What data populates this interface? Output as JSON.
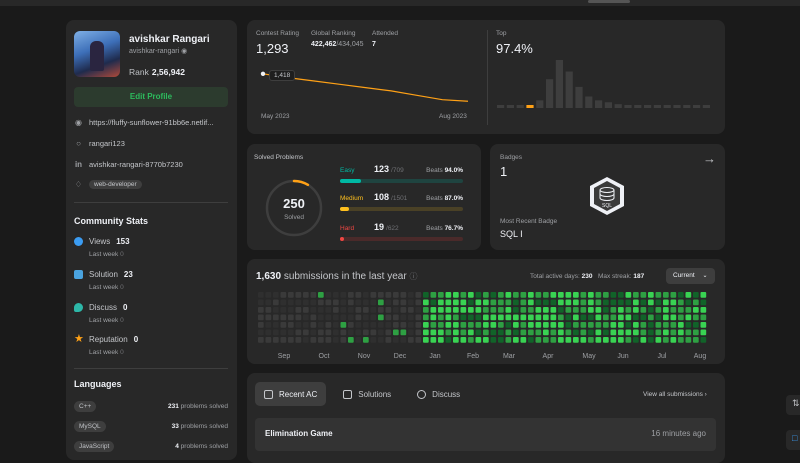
{
  "profile": {
    "name": "avishkar Rangari",
    "handle": "avishkar-rangari",
    "rank_label": "Rank",
    "rank_value": "2,56,942",
    "edit_label": "Edit Profile",
    "website": "https://fluffy-sunflower-91bb6e.netlif...",
    "github": "rangari123",
    "linkedin": "avishkar-rangari-8770b7230",
    "tag": "web-developer"
  },
  "community": {
    "title": "Community Stats",
    "items": [
      {
        "label": "Views",
        "value": "153",
        "sub": "Last week",
        "delta": "0",
        "color": "#3b9cf2"
      },
      {
        "label": "Solution",
        "value": "23",
        "sub": "Last week",
        "delta": "0",
        "color": "#4aa3df"
      },
      {
        "label": "Discuss",
        "value": "0",
        "sub": "Last week",
        "delta": "0",
        "color": "#2db7a8"
      },
      {
        "label": "Reputation",
        "value": "0",
        "sub": "Last week",
        "delta": "0",
        "color": "#ffa116"
      }
    ]
  },
  "languages": {
    "title": "Languages",
    "items": [
      {
        "name": "C++",
        "count": "231",
        "suffix": "problems solved"
      },
      {
        "name": "MySQL",
        "count": "33",
        "suffix": "problems solved"
      },
      {
        "name": "JavaScript",
        "count": "4",
        "suffix": "problems solved"
      }
    ]
  },
  "contest": {
    "rating_label": "Contest Rating",
    "rating": "1,293",
    "global_label": "Global Ranking",
    "global_rank": "422,462",
    "global_total": "/434,045",
    "attended_label": "Attended",
    "attended": "7",
    "tooltip": "1,418",
    "start_label": "May 2023",
    "end_label": "Aug 2023",
    "top_label": "Top",
    "top_value": "97.4%",
    "line_values": [
      1418,
      1400,
      1385,
      1370,
      1355,
      1340,
      1320,
      1300,
      1293
    ],
    "histogram": [
      2,
      2,
      3,
      2,
      8,
      30,
      50,
      38,
      22,
      12,
      8,
      6,
      4,
      3,
      3,
      2,
      2,
      2,
      2,
      2,
      2,
      2
    ],
    "histogram_highlight": 3,
    "accent": "#ffa116"
  },
  "solved": {
    "title": "Solved Problems",
    "total": "250",
    "total_label": "Solved",
    "fraction": 0.086,
    "rows": [
      {
        "label": "Easy",
        "count": "123",
        "total": "/709",
        "beats_label": "Beats",
        "beats": "94.0%",
        "fill": 0.173,
        "color": "#00b8a3",
        "track": "#1f4440"
      },
      {
        "label": "Medium",
        "count": "108",
        "total": "/1501",
        "beats_label": "Beats",
        "beats": "87.0%",
        "fill": 0.072,
        "color": "#ffc01e",
        "track": "#4a4126"
      },
      {
        "label": "Hard",
        "count": "19",
        "total": "/622",
        "beats_label": "Beats",
        "beats": "76.7%",
        "fill": 0.031,
        "color": "#ef4743",
        "track": "#4a2a2a"
      }
    ]
  },
  "badges": {
    "title": "Badges",
    "count": "1",
    "recent_label": "Most Recent Badge",
    "recent": "SQL I",
    "badge_text": "SQL"
  },
  "heatmap": {
    "count": "1,630",
    "text": "submissions in the last year",
    "active_label": "Total active days:",
    "active": "230",
    "streak_label": "Max streak:",
    "streak": "187",
    "select": "Current",
    "months": [
      "Sep",
      "Oct",
      "Nov",
      "Dec",
      "Jan",
      "Feb",
      "Mar",
      "Apr",
      "May",
      "Jun",
      "Jul",
      "Aug"
    ]
  },
  "recent": {
    "tabs": [
      {
        "label": "Recent AC",
        "icon": "list-icon"
      },
      {
        "label": "Solutions",
        "icon": "solution-icon"
      },
      {
        "label": "Discuss",
        "icon": "discuss-icon"
      }
    ],
    "view_all": "View all submissions",
    "items": [
      {
        "title": "Elimination Game",
        "time": "16 minutes ago"
      }
    ]
  }
}
